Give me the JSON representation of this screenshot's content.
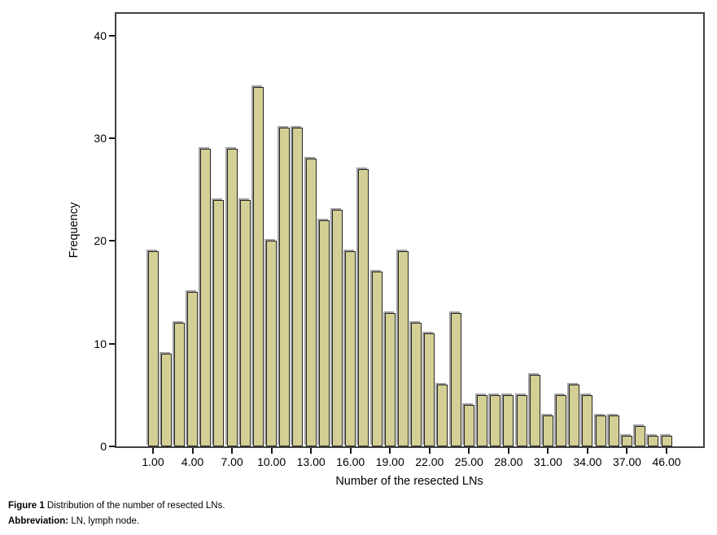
{
  "chart_data": {
    "type": "bar",
    "title": "",
    "xlabel": "Number of the resected LNs",
    "ylabel": "Frequency",
    "n_bars": 40,
    "values": [
      19,
      9,
      12,
      15,
      29,
      24,
      29,
      24,
      35,
      20,
      31,
      31,
      28,
      22,
      23,
      19,
      27,
      17,
      13,
      19,
      12,
      11,
      6,
      13,
      4,
      5,
      5,
      5,
      5,
      7,
      3,
      5,
      6,
      5,
      3,
      3,
      1,
      2,
      1,
      1
    ],
    "x_tick_positions": [
      0,
      3,
      6,
      9,
      12,
      15,
      18,
      21,
      24,
      27,
      30,
      33,
      36,
      39
    ],
    "x_tick_labels": [
      "1.00",
      "4.00",
      "7.00",
      "10.00",
      "13.00",
      "16.00",
      "19.00",
      "22.00",
      "25.00",
      "28.00",
      "31.00",
      "34.00",
      "37.00",
      "46.00"
    ],
    "y_ticks": [
      0,
      10,
      20,
      30,
      40
    ],
    "ylim": [
      0,
      42.1
    ],
    "grid": false,
    "legend": "none",
    "colors": {
      "bar_fill": "#d4cf94",
      "bar_border": "#262626",
      "bar_shadow": "#a0a0a0",
      "frame": "#424242",
      "tick": "#161616",
      "text": "#000000",
      "background": "#ffffff"
    }
  },
  "caption": {
    "line1_bold": "Figure 1",
    "line1_text": " Distribution of the number of resected LNs.",
    "line2_bold": "Abbreviation:",
    "line2_text": " LN, lymph node."
  }
}
